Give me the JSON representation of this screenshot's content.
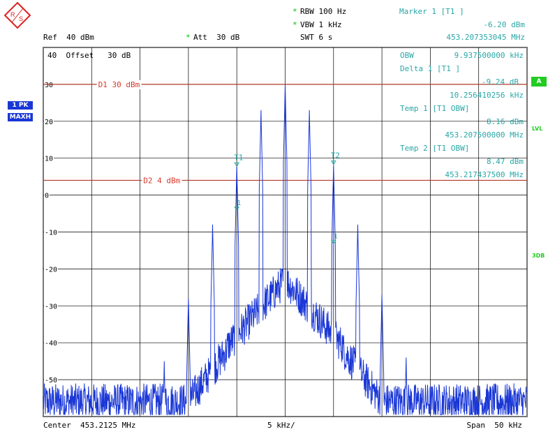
{
  "logo_text": "R&S",
  "header": {
    "ref": "Ref  40 dBm",
    "att_star": "*",
    "att": "Att  30 dB",
    "rbw_star": "*",
    "rbw": "RBW 100 Hz",
    "vbw_star": "*",
    "vbw": "VBW 1 kHz",
    "swt": "SWT 6 s",
    "marker_title": "Marker 1 [T1 ]",
    "marker_level": "-6.20 dBm",
    "marker_freq": "453.207353045 MHz"
  },
  "left_badges": {
    "trace": "1 PK",
    "detector": "MAXH"
  },
  "right_badges": {
    "a": "A",
    "lvl": "LVL",
    "db3": "3DB"
  },
  "offset_label": "40  Offset   30 dB",
  "info": {
    "obw_label": "OBW",
    "obw_value": "9.937500000 kHz",
    "delta_title": "Delta 1 [T1 ]",
    "delta_level": "-9.24 dB",
    "delta_freq": "10.256410256 kHz",
    "temp1_title": "Temp 1 [T1 OBW]",
    "temp1_level": "8.16 dBm",
    "temp1_freq": "453.207500000 MHz",
    "temp2_title": "Temp 2 [T1 OBW]",
    "temp2_level": "8.47 dBm",
    "temp2_freq": "453.217437500 MHz"
  },
  "footer": {
    "center": "Center  453.2125 MHz",
    "div": "5 kHz/",
    "span": "Span  50 kHz"
  },
  "colors": {
    "trace": "#1a37d6",
    "display_line": "#b33a2a",
    "marker": "#2aa7a7",
    "grid": "#000000"
  },
  "chart_data": {
    "type": "line",
    "title": "",
    "xlabel": "",
    "ylabel": "",
    "x_unit": "kHz offset from center",
    "xlim": [
      -25,
      25
    ],
    "ylim": [
      -60,
      40
    ],
    "yticks": [
      40,
      30,
      20,
      10,
      0,
      -10,
      -20,
      -30,
      -40,
      -50
    ],
    "ytick_labels": [
      "40",
      "30",
      "20",
      "10",
      "0",
      "-10",
      "-20",
      "-30",
      "-40",
      "-50"
    ],
    "grid": true,
    "display_lines": [
      {
        "name": "D1",
        "label": "D1 30 dBm",
        "value": 30
      },
      {
        "name": "D2",
        "label": "D2 4 dBm",
        "value": 4
      }
    ],
    "markers": [
      {
        "label": "T1",
        "x": -5.0,
        "y": 8
      },
      {
        "label": "T2",
        "x": 5.0,
        "y": 8.5
      }
    ],
    "delta_marker": {
      "label": "1",
      "x": -5.0,
      "y": -4
    },
    "delta_marker2": {
      "label": "1",
      "x": 5.0,
      "y": -13
    },
    "spectral_lines": [
      {
        "x": -10.0,
        "y": -28
      },
      {
        "x": -7.5,
        "y": -8
      },
      {
        "x": -5.0,
        "y": 8
      },
      {
        "x": -2.5,
        "y": 23
      },
      {
        "x": 0.0,
        "y": 30
      },
      {
        "x": 2.5,
        "y": 23
      },
      {
        "x": 5.0,
        "y": 8
      },
      {
        "x": 7.5,
        "y": -8
      },
      {
        "x": 10.0,
        "y": -27
      },
      {
        "x": -12.5,
        "y": -45
      },
      {
        "x": 12.5,
        "y": -44
      }
    ],
    "noise_floor": -55,
    "cluster_peak": -22,
    "cluster_halfwidth_khz": 6
  }
}
